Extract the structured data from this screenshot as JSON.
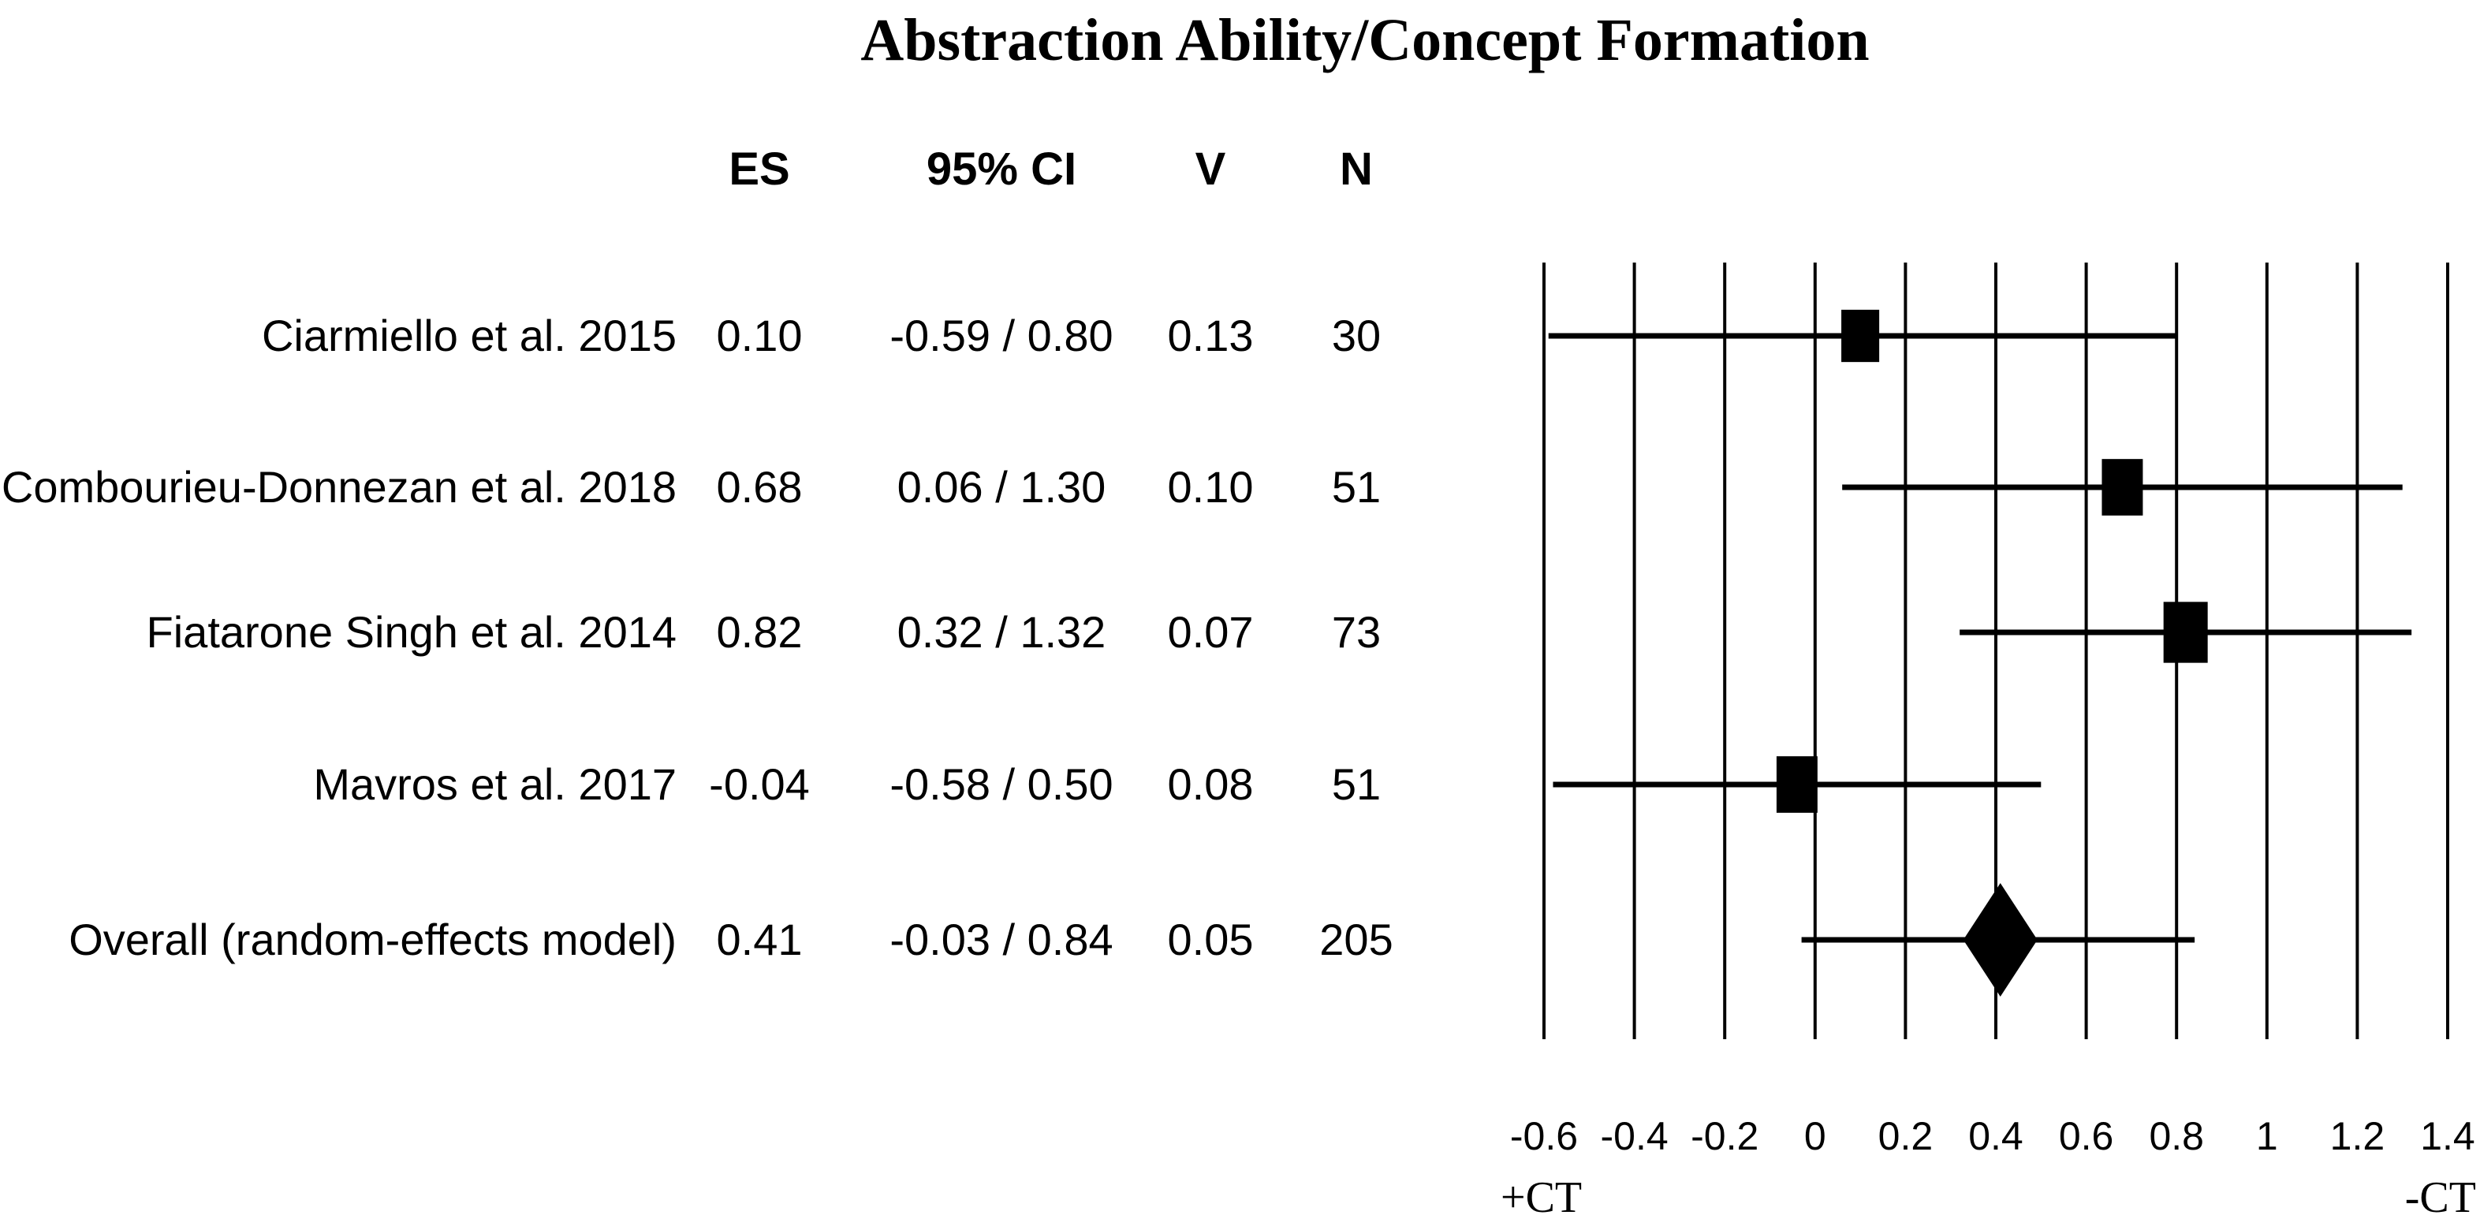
{
  "title": "Abstraction Ability/Concept Formation",
  "colors": {
    "ink": "#000000",
    "background": "#ffffff"
  },
  "table": {
    "headers": {
      "es": "ES",
      "ci": "95% CI",
      "v": "V",
      "n": "N"
    },
    "rows": [
      {
        "label": "Ciarmiello et al. 2015",
        "es": "0.10",
        "ci": "-0.59 / 0.80",
        "v": "0.13",
        "n": "30"
      },
      {
        "label": "Combourieu-Donnezan et al. 2018",
        "es": "0.68",
        "ci": "0.06 / 1.30",
        "v": "0.10",
        "n": "51"
      },
      {
        "label": "Fiatarone Singh et al. 2014",
        "es": "0.82",
        "ci": "0.32 / 1.32",
        "v": "0.07",
        "n": "73"
      },
      {
        "label": "Mavros et al. 2017",
        "es": "-0.04",
        "ci": "-0.58 / 0.50",
        "v": "0.08",
        "n": "51"
      },
      {
        "label": "Overall (random-effects model)",
        "es": "0.41",
        "ci": "-0.03 / 0.84",
        "v": "0.05",
        "n": "205"
      }
    ]
  },
  "chart_data": {
    "type": "forest",
    "title": "Abstraction Ability/Concept Formation",
    "xlim": [
      -0.6,
      1.4
    ],
    "x_ticks": [
      -0.6,
      -0.4,
      -0.2,
      0,
      0.2,
      0.4,
      0.6,
      0.8,
      1,
      1.2,
      1.4
    ],
    "tick_labels": [
      "-0.6",
      "-0.4",
      "-0.2",
      "0",
      "0.2",
      "0.4",
      "0.6",
      "0.8",
      "1",
      "1.2",
      "1.4"
    ],
    "grid": "vertical-gridlines-on",
    "legend": "none",
    "axis_label_left": "+CT",
    "axis_label_right": "-CT",
    "studies": [
      {
        "name": "Ciarmiello et al. 2015",
        "es": 0.1,
        "ci_low": -0.59,
        "ci_high": 0.8,
        "v": 0.13,
        "n": 30,
        "marker": "square"
      },
      {
        "name": "Combourieu-Donnezan et al. 2018",
        "es": 0.68,
        "ci_low": 0.06,
        "ci_high": 1.3,
        "v": 0.1,
        "n": 51,
        "marker": "square"
      },
      {
        "name": "Fiatarone Singh et al. 2014",
        "es": 0.82,
        "ci_low": 0.32,
        "ci_high": 1.32,
        "v": 0.07,
        "n": 73,
        "marker": "square"
      },
      {
        "name": "Mavros et al. 2017",
        "es": -0.04,
        "ci_low": -0.58,
        "ci_high": 0.5,
        "v": 0.08,
        "n": 51,
        "marker": "square"
      },
      {
        "name": "Overall (random-effects model)",
        "es": 0.41,
        "ci_low": -0.03,
        "ci_high": 0.84,
        "v": 0.05,
        "n": 205,
        "marker": "diamond"
      }
    ]
  }
}
